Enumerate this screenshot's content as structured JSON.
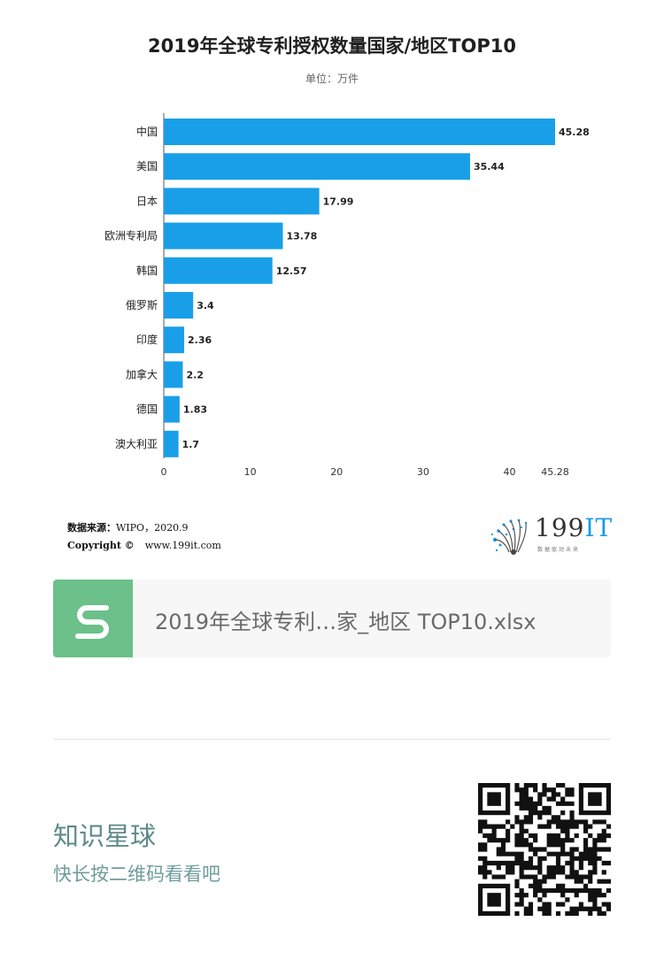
{
  "chart_data": {
    "type": "bar",
    "orientation": "horizontal",
    "title": "2019年全球专利授权数量国家/地区TOP10",
    "subtitle": "单位：万件",
    "categories": [
      "中国",
      "美国",
      "日本",
      "欧洲专利局",
      "韩国",
      "俄罗斯",
      "印度",
      "加拿大",
      "德国",
      "澳大利亚"
    ],
    "values": [
      45.28,
      35.44,
      17.99,
      13.78,
      12.57,
      3.4,
      2.36,
      2.2,
      1.83,
      1.7
    ],
    "value_labels": [
      "45.28",
      "35.44",
      "17.99",
      "13.78",
      "12.57",
      "3.4",
      "2.36",
      "2.2",
      "1.83",
      "1.7"
    ],
    "xlim": [
      0,
      45.28
    ],
    "x_ticks": [
      0,
      10,
      20,
      30,
      40,
      45.28
    ],
    "x_tick_labels": [
      "0",
      "10",
      "20",
      "30",
      "40",
      "45.28"
    ],
    "bar_color": "#199fe8",
    "grid": false,
    "legend": "none"
  },
  "source": {
    "label": "数据来源：",
    "text": "WIPO，2020.9"
  },
  "copyright": {
    "label": "Copyright ©",
    "text": "www.199it.com"
  },
  "logo": {
    "text_num": "199",
    "text_it": "IT",
    "slogan": "数据驱动未来",
    "accent": "#1a9be6"
  },
  "file": {
    "name": "2019年全球专利…家_地区 TOP10.xlsx",
    "icon": "spreadsheet-s-icon",
    "icon_color": "#6cc08a"
  },
  "planet": {
    "title": "知识星球",
    "subtitle": "快长按二维码看看吧",
    "qr_icon": "qr-code-icon"
  }
}
